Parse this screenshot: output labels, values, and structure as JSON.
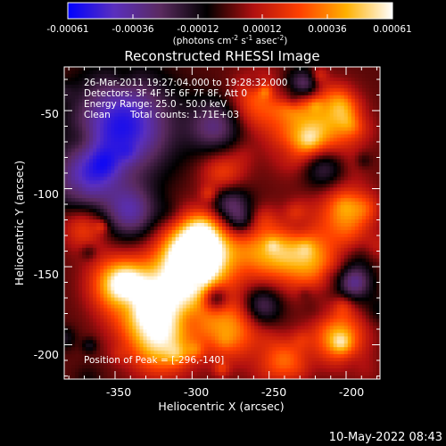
{
  "chart_data": {
    "type": "heatmap",
    "title": "Reconstructed RHESSI Image",
    "xlabel": "Heliocentric X (arcsec)",
    "ylabel": "Heliocentric Y (arcsec)",
    "xlim": [
      -383,
      -178
    ],
    "ylim": [
      -222,
      -22
    ],
    "xticks": [
      -350,
      -300,
      -250,
      -200
    ],
    "xtick_labels": [
      "-350",
      "-300",
      "-250",
      "-200"
    ],
    "yticks": [
      -50,
      -100,
      -150,
      -200
    ],
    "ytick_labels": [
      "-50",
      "-100",
      "-150",
      "-200"
    ],
    "colorbar": {
      "range": [
        -0.00061,
        0.00061
      ],
      "ticks": [
        -0.00061,
        -0.00036,
        -0.00012,
        0.00012,
        0.00036,
        0.00061
      ],
      "tick_labels": [
        "-0.00061",
        "-0.00036",
        "-0.00012",
        "0.00012",
        "0.00036",
        "0.00061"
      ],
      "unit_parts": [
        "(photons cm",
        "-2",
        " s",
        "-1",
        " asec",
        "-2",
        ")"
      ],
      "colors": [
        "#0000ff",
        "#5a2fbe",
        "#5a2a5f",
        "#000000",
        "#b01010",
        "#ff4000",
        "#ffb000",
        "#ffffff"
      ]
    },
    "annotations": {
      "time_range": "26-Mar-2011 19:27:04.000 to 19:28:32.000",
      "detectors": "Detectors: 3F 4F 5F 6F 7F 8F, Att 0",
      "energy": "Energy Range: 25.0 - 50.0 keV",
      "method": "Clean",
      "counts": "Total counts: 1.71E+03",
      "peak": "Position of Peak = [-296,-140]"
    },
    "peak": {
      "x": -296,
      "y": -140
    },
    "grid_bins": [
      88,
      88
    ]
  },
  "footer": {
    "timestamp": "10-May-2022 08:43"
  }
}
